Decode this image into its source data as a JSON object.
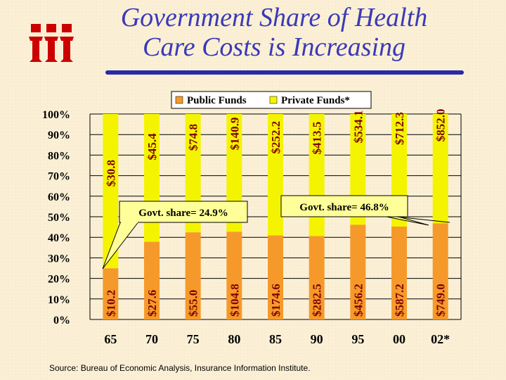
{
  "header": {
    "title_line1": "Government Share of Health",
    "title_line2": "Care Costs is Increasing"
  },
  "logo": {
    "name": "iii-logo",
    "color": "#CC0000"
  },
  "chart_data": {
    "type": "bar",
    "stacked": true,
    "categories": [
      "65",
      "70",
      "75",
      "80",
      "85",
      "90",
      "95",
      "00",
      "02*"
    ],
    "series": [
      {
        "name": "Public Funds",
        "color": "#F59A2A",
        "values": [
          24.9,
          37.8,
          42.4,
          42.7,
          40.9,
          40.6,
          46.1,
          45.2,
          46.8
        ],
        "labels": [
          "$10.2",
          "$27.6",
          "$55.0",
          "$104.8",
          "$174.6",
          "$282.5",
          "$456.2",
          "$587.2",
          "$749.0"
        ]
      },
      {
        "name": "Private Funds*",
        "color": "#F4F400",
        "values": [
          75.1,
          62.2,
          57.6,
          57.3,
          59.1,
          59.4,
          53.9,
          54.8,
          53.2
        ],
        "labels": [
          "$30.8",
          "$45.4",
          "$74.8",
          "$140.9",
          "$252.2",
          "$413.5",
          "$534.1",
          "$712.3",
          "$852.0"
        ]
      }
    ],
    "yticks": [
      "0%",
      "10%",
      "20%",
      "30%",
      "40%",
      "50%",
      "60%",
      "70%",
      "80%",
      "90%",
      "100%"
    ],
    "ylim": [
      0,
      100
    ],
    "legend_position": "top",
    "grid": true,
    "annotations": [
      {
        "text": "Govt. share= 24.9%",
        "points_to": "65"
      },
      {
        "text": "Govt. share= 46.8%",
        "points_to": "02*"
      }
    ]
  },
  "footer": {
    "source": "Source: Bureau of Economic Analysis, Insurance Information Institute."
  }
}
